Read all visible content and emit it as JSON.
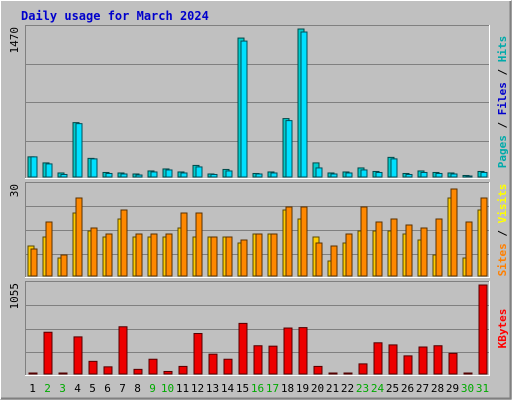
{
  "title": "Daily usage for March 2024",
  "colors": {
    "background": "#c0c0c0",
    "title": "#0000cc",
    "pages": "#00aaaa",
    "files": "#0000cc",
    "hits": "#00aaaa",
    "sites": "#ff8000",
    "visits": "#ffff00",
    "kbytes": "#ff0000",
    "weekend": "#00aa00",
    "weekday": "#000000",
    "grid": "#808080"
  },
  "chart_data": [
    {
      "type": "bar",
      "title": "Daily usage for March 2024",
      "ymax_label": "1470",
      "ylim": [
        0,
        1470
      ],
      "legend": [
        {
          "name": "Pages",
          "color": "#00aaaa"
        },
        {
          "name": "Files",
          "color": "#0000cc"
        },
        {
          "name": "Hits",
          "color": "#00aaaa"
        }
      ],
      "legend_separator": " / ",
      "categories": [
        "1",
        "2",
        "3",
        "4",
        "5",
        "6",
        "7",
        "8",
        "9",
        "10",
        "11",
        "12",
        "13",
        "14",
        "15",
        "16",
        "17",
        "18",
        "19",
        "20",
        "21",
        "22",
        "23",
        "24",
        "25",
        "26",
        "27",
        "28",
        "29",
        "30",
        "31"
      ],
      "series": [
        {
          "name": "Hits",
          "color": "#00cccc",
          "values": [
            200,
            140,
            40,
            540,
            185,
            45,
            40,
            30,
            60,
            80,
            50,
            115,
            30,
            75,
            1380,
            35,
            50,
            580,
            1470,
            140,
            40,
            50,
            90,
            55,
            195,
            35,
            60,
            45,
            40,
            15,
            55
          ]
        },
        {
          "name": "Files",
          "color": "#00e0ff",
          "values": [
            200,
            130,
            25,
            530,
            180,
            35,
            30,
            20,
            50,
            70,
            40,
            100,
            25,
            60,
            1350,
            30,
            40,
            560,
            1440,
            90,
            30,
            40,
            70,
            45,
            180,
            25,
            45,
            35,
            30,
            10,
            45
          ]
        }
      ]
    },
    {
      "type": "bar",
      "ymax_label": "30",
      "ylim": [
        0,
        30
      ],
      "legend": [
        {
          "name": "Sites",
          "color": "#ff8000"
        },
        {
          "name": "Visits",
          "color": "#ffff00"
        }
      ],
      "legend_separator": " / ",
      "categories": [
        "1",
        "2",
        "3",
        "4",
        "5",
        "6",
        "7",
        "8",
        "9",
        "10",
        "11",
        "12",
        "13",
        "14",
        "15",
        "16",
        "17",
        "18",
        "19",
        "20",
        "21",
        "22",
        "23",
        "24",
        "25",
        "26",
        "27",
        "28",
        "29",
        "30",
        "31"
      ],
      "series": [
        {
          "name": "Visits",
          "color": "#ffcc00",
          "values": [
            10,
            13,
            6,
            21,
            15,
            13,
            19,
            13,
            13,
            13,
            16,
            13,
            13,
            13,
            11,
            14,
            14,
            22,
            19,
            13,
            5,
            11,
            15,
            15,
            15,
            14,
            12,
            7,
            26,
            6,
            22
          ]
        },
        {
          "name": "Sites",
          "color": "#ff8800",
          "values": [
            9,
            18,
            7,
            26,
            16,
            14,
            22,
            14,
            14,
            14,
            21,
            21,
            13,
            13,
            12,
            14,
            14,
            23,
            23,
            11,
            10,
            14,
            23,
            18,
            19,
            17,
            16,
            19,
            29,
            18,
            26
          ]
        }
      ]
    },
    {
      "type": "bar",
      "ymax_label": "1055",
      "ylim": [
        0,
        1055
      ],
      "legend": [
        {
          "name": "KBytes",
          "color": "#ff0000"
        }
      ],
      "legend_separator": "",
      "categories": [
        "1",
        "2",
        "3",
        "4",
        "5",
        "6",
        "7",
        "8",
        "9",
        "10",
        "11",
        "12",
        "13",
        "14",
        "15",
        "16",
        "17",
        "18",
        "19",
        "20",
        "21",
        "22",
        "23",
        "24",
        "25",
        "26",
        "27",
        "28",
        "29",
        "30",
        "31"
      ],
      "series": [
        {
          "name": "KBytes",
          "color": "#ee0000",
          "values": [
            0,
            495,
            0,
            440,
            150,
            85,
            560,
            55,
            175,
            30,
            90,
            480,
            235,
            175,
            600,
            335,
            330,
            545,
            550,
            90,
            0,
            0,
            120,
            370,
            345,
            215,
            320,
            335,
            245,
            0,
            1055
          ]
        }
      ]
    }
  ],
  "x_labels": [
    {
      "label": "1",
      "weekend": false
    },
    {
      "label": "2",
      "weekend": true
    },
    {
      "label": "3",
      "weekend": true
    },
    {
      "label": "4",
      "weekend": false
    },
    {
      "label": "5",
      "weekend": false
    },
    {
      "label": "6",
      "weekend": false
    },
    {
      "label": "7",
      "weekend": false
    },
    {
      "label": "8",
      "weekend": false
    },
    {
      "label": "9",
      "weekend": true
    },
    {
      "label": "10",
      "weekend": true
    },
    {
      "label": "11",
      "weekend": false
    },
    {
      "label": "12",
      "weekend": false
    },
    {
      "label": "13",
      "weekend": false
    },
    {
      "label": "14",
      "weekend": false
    },
    {
      "label": "15",
      "weekend": false
    },
    {
      "label": "16",
      "weekend": true
    },
    {
      "label": "17",
      "weekend": true
    },
    {
      "label": "18",
      "weekend": false
    },
    {
      "label": "19",
      "weekend": false
    },
    {
      "label": "20",
      "weekend": false
    },
    {
      "label": "21",
      "weekend": false
    },
    {
      "label": "22",
      "weekend": false
    },
    {
      "label": "23",
      "weekend": true
    },
    {
      "label": "24",
      "weekend": true
    },
    {
      "label": "25",
      "weekend": false
    },
    {
      "label": "26",
      "weekend": false
    },
    {
      "label": "27",
      "weekend": false
    },
    {
      "label": "28",
      "weekend": false
    },
    {
      "label": "29",
      "weekend": false
    },
    {
      "label": "30",
      "weekend": true
    },
    {
      "label": "31",
      "weekend": true
    }
  ]
}
